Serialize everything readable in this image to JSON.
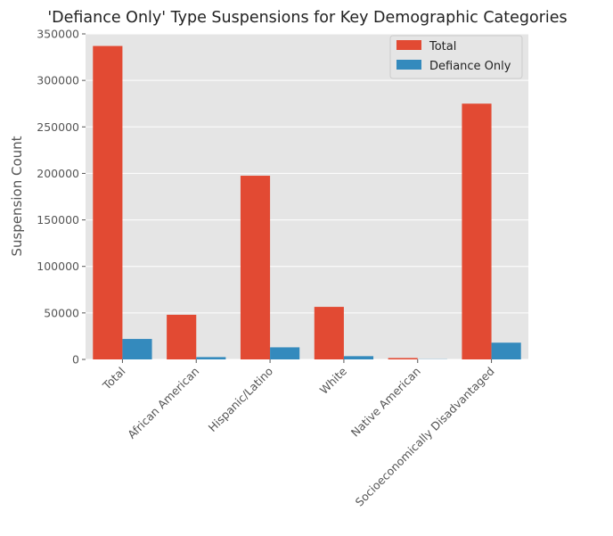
{
  "chart_data": {
    "type": "bar",
    "title": "'Defiance Only' Type Suspensions for Key Demographic Categories",
    "xlabel": "",
    "ylabel": "Suspension Count",
    "categories": [
      "Total",
      "African American",
      "Hispanic/Latino",
      "White",
      "Native American",
      "Socioeconomically Disadvantaged"
    ],
    "series": [
      {
        "name": "Total",
        "color": "#E24A33",
        "values": [
          337000,
          48000,
          197500,
          56500,
          1500,
          275000
        ]
      },
      {
        "name": "Defiance Only",
        "color": "#348ABD",
        "values": [
          22000,
          2500,
          13000,
          3500,
          200,
          18000
        ]
      }
    ],
    "ylim": [
      0,
      350000
    ],
    "yticks": [
      0,
      50000,
      100000,
      150000,
      200000,
      250000,
      300000,
      350000
    ],
    "ytick_labels": [
      "0",
      "50000",
      "100000",
      "150000",
      "200000",
      "250000",
      "300000",
      "350000"
    ],
    "grid": true,
    "legend_position": "top-right",
    "style": {
      "plot_background": "#E5E5E5",
      "grid_color": "#FFFFFF",
      "text_color": "#555555"
    }
  }
}
